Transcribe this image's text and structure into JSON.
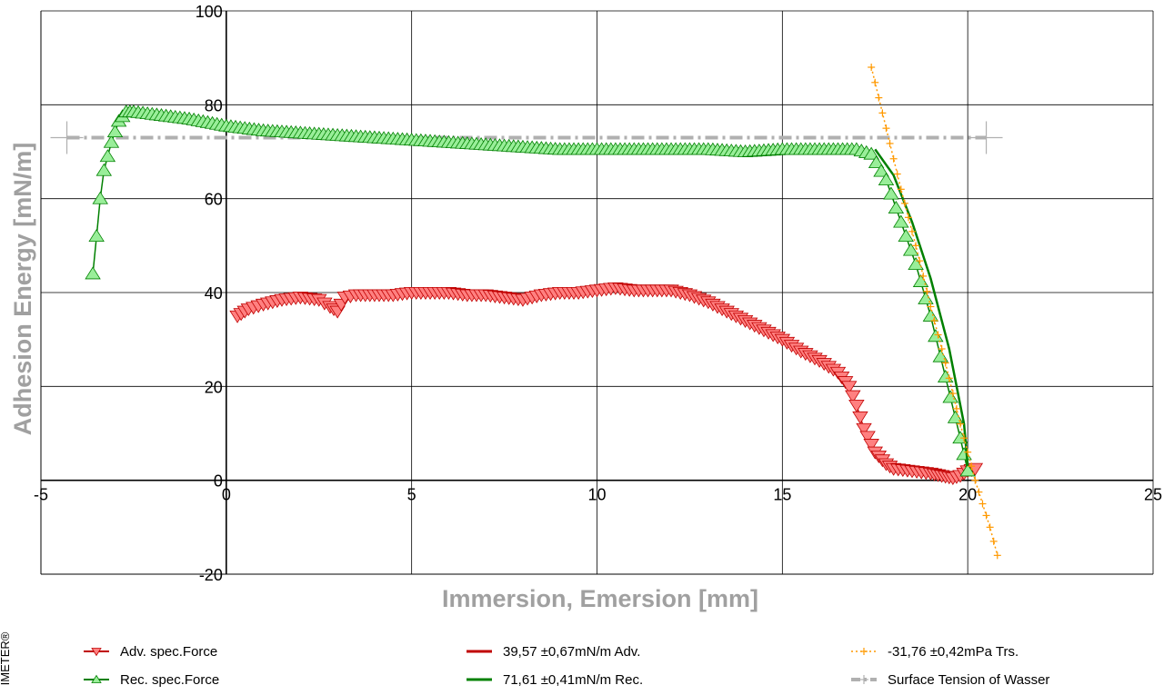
{
  "chart_data": {
    "type": "line",
    "xlabel": "Immersion, Emersion [mm]",
    "ylabel": "Adhesion Energy [mN/m]",
    "xlim": [
      -5,
      25
    ],
    "ylim": [
      -20,
      100
    ],
    "x_ticks": [
      "-5",
      "0",
      "5",
      "10",
      "15",
      "20",
      "25"
    ],
    "y_ticks": [
      "-20",
      "0",
      "20",
      "40",
      "60",
      "80",
      "100"
    ],
    "grid": true,
    "legend_placement": "bottom",
    "side_text": "IMETER®",
    "colors": {
      "adv": "#c00000",
      "adv_fill": "#ff8080",
      "rec": "#008000",
      "rec_fill": "#99ee99",
      "trs": "#ff9900",
      "surface": "#b0b0b0"
    },
    "series": [
      {
        "name": "Adv. spec.Force",
        "marker": "triangle-down",
        "x": [
          0.3,
          0.6,
          1.0,
          1.5,
          2.0,
          2.5,
          2.8,
          3.0,
          3.2,
          3.5,
          4.0,
          4.5,
          5.0,
          5.5,
          6.0,
          6.5,
          7.0,
          7.5,
          8.0,
          8.5,
          9.0,
          9.5,
          10.0,
          10.5,
          11.0,
          11.5,
          12.0,
          12.5,
          13.0,
          13.5,
          14.0,
          14.5,
          15.0,
          15.5,
          16.0,
          16.5,
          16.8,
          17.0,
          17.2,
          17.5,
          17.8,
          18.0,
          18.5,
          19.0,
          19.3,
          19.6,
          19.8,
          20.0,
          20.2
        ],
        "y": [
          35,
          36.5,
          37.5,
          38.5,
          39,
          38.5,
          37,
          36,
          39,
          39.5,
          39.5,
          39.5,
          40,
          40,
          40,
          39.5,
          39.5,
          39,
          38.5,
          39.5,
          40,
          40,
          40.5,
          41,
          40.5,
          40.5,
          40.5,
          39.5,
          38,
          36,
          34,
          32,
          30,
          27.5,
          25.5,
          23,
          20,
          16,
          11,
          6,
          3.5,
          2.5,
          2,
          1.5,
          1,
          0.5,
          1,
          2,
          2.5
        ]
      },
      {
        "name": "Rec. spec.Force",
        "marker": "triangle-up",
        "x": [
          -3.6,
          -3.5,
          -3.4,
          -3.3,
          -3.1,
          -2.9,
          -2.7,
          -2.5,
          -2,
          -1,
          0,
          1,
          2,
          3,
          4,
          5,
          6,
          7,
          8,
          9,
          10,
          11,
          12,
          13,
          14,
          15,
          16,
          17,
          17.4,
          17.8,
          18.2,
          18.6,
          19.0,
          19.4,
          19.8,
          20.0
        ],
        "y": [
          44,
          52,
          60,
          66,
          72,
          76.5,
          78.5,
          78.5,
          78,
          77,
          75.5,
          74.5,
          74,
          73.5,
          73,
          72.5,
          72,
          71.5,
          71,
          70.5,
          70.5,
          70.5,
          70.5,
          70.5,
          70,
          70.5,
          70.5,
          70.5,
          69.5,
          64,
          55,
          46,
          35,
          22,
          9,
          2
        ]
      },
      {
        "name": "39,57 ±0,67mN/m Adv.",
        "style": "line",
        "x": [],
        "y": []
      },
      {
        "name": "71,61 ±0,41mN/m Rec.",
        "style": "line",
        "x": [
          17.5,
          18.0,
          18.5,
          19.0,
          19.5,
          19.9,
          20.0
        ],
        "y": [
          70.5,
          65,
          55,
          43,
          28,
          12,
          3
        ]
      },
      {
        "name": "-31,76 ±0,42mPa Trs.",
        "style": "dotted-cross",
        "x": [
          17.4,
          17.8,
          18.2,
          18.6,
          19.0,
          19.4,
          19.8,
          20.2,
          20.6,
          20.8
        ],
        "y": [
          88,
          75,
          62,
          50,
          37,
          25,
          12,
          0,
          -10,
          -16
        ]
      },
      {
        "name": "Surface Tension of Wasser",
        "style": "dash-dot",
        "x": [
          -4.3,
          20.5
        ],
        "y": [
          73,
          73
        ]
      }
    ]
  }
}
